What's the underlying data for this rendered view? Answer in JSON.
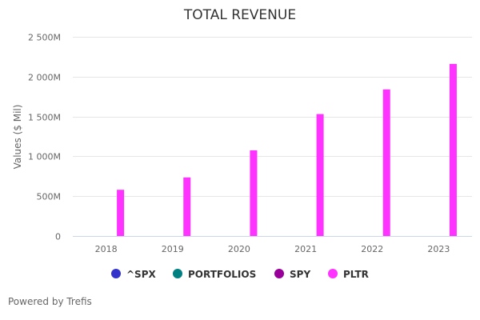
{
  "chart_data": {
    "type": "bar",
    "title": "TOTAL REVENUE",
    "xlabel": "",
    "ylabel": "Values ($ Mil)",
    "ylim": [
      0,
      2500
    ],
    "yticks": [
      0,
      500,
      1000,
      1500,
      2000,
      2500
    ],
    "ytick_labels": [
      "0",
      "500M",
      "1 000M",
      "1 500M",
      "2 000M",
      "2 500M"
    ],
    "categories": [
      "2018",
      "2019",
      "2020",
      "2021",
      "2022",
      "2023"
    ],
    "grid": true,
    "legend_position": "bottom-center",
    "series": [
      {
        "name": "^SPX",
        "color": "#3333cc",
        "values": [
          null,
          null,
          null,
          null,
          null,
          null
        ]
      },
      {
        "name": "PORTFOLIOS",
        "color": "#008080",
        "values": [
          null,
          null,
          null,
          null,
          null,
          null
        ]
      },
      {
        "name": "SPY",
        "color": "#990099",
        "values": [
          null,
          null,
          null,
          null,
          null,
          null
        ]
      },
      {
        "name": "PLTR",
        "color": "#ff33ff",
        "values": [
          580,
          735,
          1075,
          1530,
          1840,
          2160
        ]
      }
    ]
  },
  "credits": "Powered by Trefis"
}
